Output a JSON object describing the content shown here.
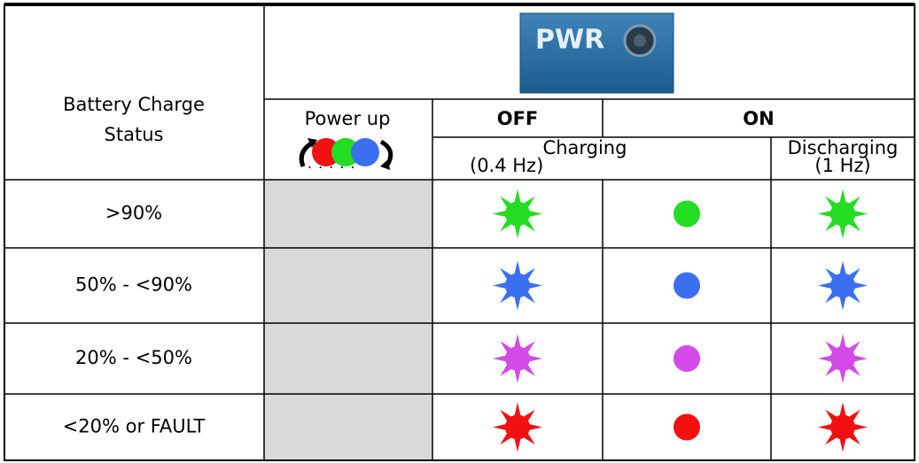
{
  "header": {
    "battery_status": [
      "Battery Charge",
      "Status"
    ],
    "button_label": "PWR",
    "power_up": "Power up",
    "off": "OFF",
    "on": "ON",
    "charging": "Charging",
    "charging_rate": "(0.4 Hz)",
    "discharging": "Discharging",
    "discharging_rate": "(1 Hz)"
  },
  "rows": [
    ">90%",
    "50% - <90%",
    "20% - <50%",
    "<20% or FAULT"
  ]
}
